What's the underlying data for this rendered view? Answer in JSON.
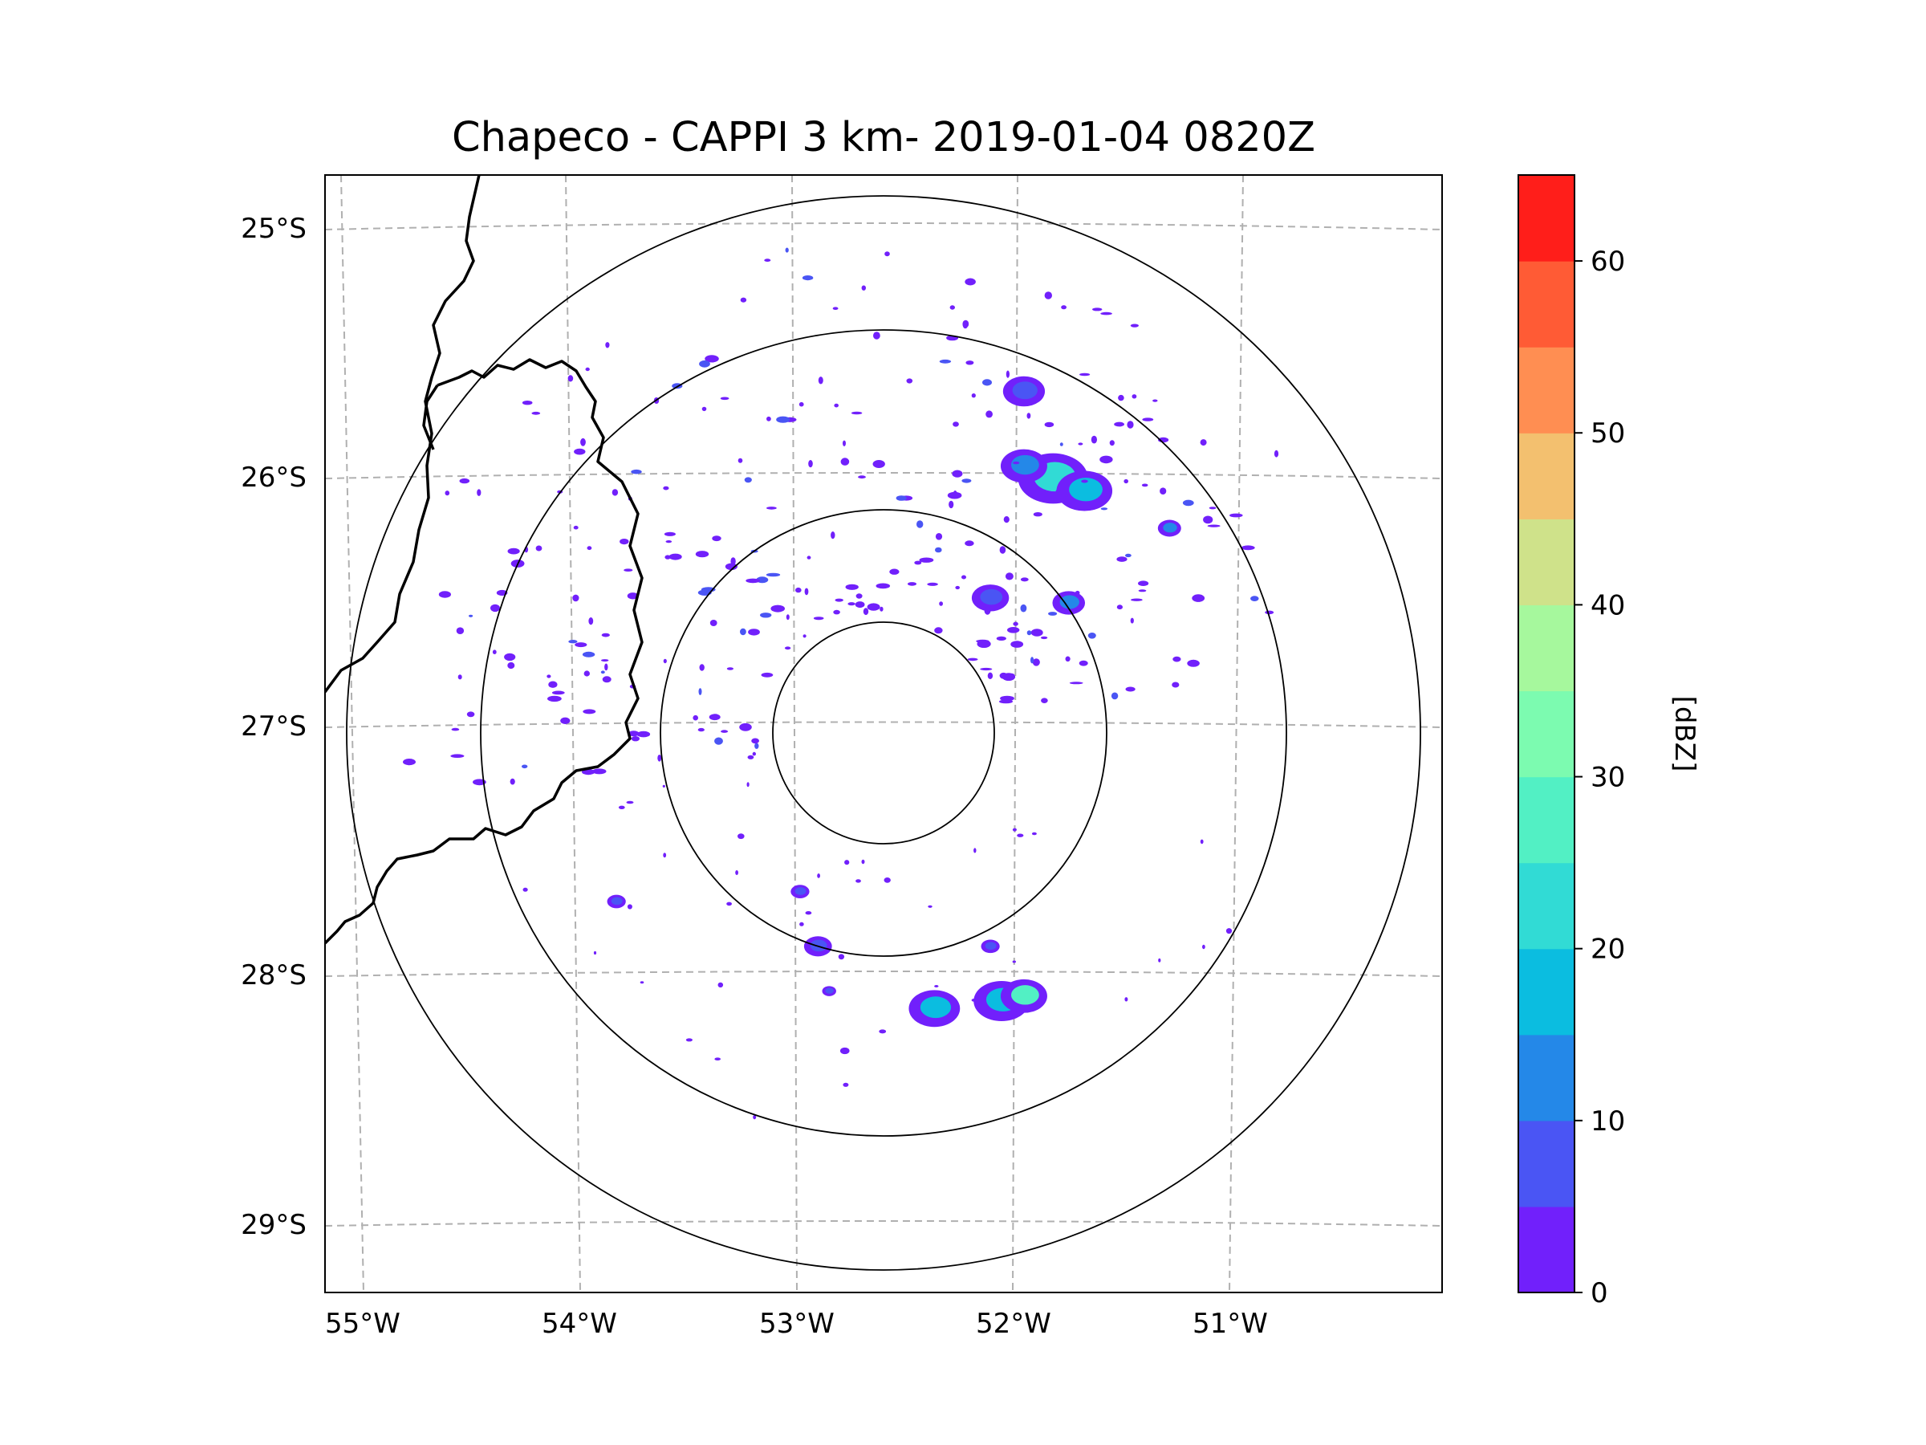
{
  "figure": {
    "title": "Chapeco - CAPPI 3 km- 2019-01-04 0820Z",
    "background": "#ffffff"
  },
  "map": {
    "lat_labels": [
      "25°S",
      "26°S",
      "27°S",
      "28°S",
      "29°S"
    ],
    "lon_labels": [
      "55°W",
      "54°W",
      "53°W",
      "52°W",
      "51°W"
    ],
    "gridline_color": "#b0b0b0",
    "border_color": "#000000",
    "range_ring_color": "#000000",
    "range_rings_count": 4
  },
  "colorbar": {
    "label": "[dBZ]",
    "ticks": [
      "0",
      "10",
      "20",
      "30",
      "40",
      "50",
      "60"
    ],
    "levels": [
      {
        "from": 0,
        "to": 5,
        "color": "#7120fb"
      },
      {
        "from": 5,
        "to": 10,
        "color": "#4a55f4"
      },
      {
        "from": 10,
        "to": 15,
        "color": "#2488e8"
      },
      {
        "from": 15,
        "to": 20,
        "color": "#0bbde0"
      },
      {
        "from": 20,
        "to": 25,
        "color": "#31dbd5"
      },
      {
        "from": 25,
        "to": 30,
        "color": "#52f0c4"
      },
      {
        "from": 30,
        "to": 35,
        "color": "#7cfbb0"
      },
      {
        "from": 35,
        "to": 40,
        "color": "#a6f89d"
      },
      {
        "from": 40,
        "to": 45,
        "color": "#cfe28a"
      },
      {
        "from": 45,
        "to": 50,
        "color": "#f3c06f"
      },
      {
        "from": 50,
        "to": 55,
        "color": "#ff8e52"
      },
      {
        "from": 55,
        "to": 60,
        "color": "#ff5b35"
      },
      {
        "from": 60,
        "to": 65,
        "color": "#ff1e1a"
      }
    ]
  },
  "chart_data": {
    "type": "heatmap",
    "title": "Chapeco - CAPPI 3 km- 2019-01-04 0820Z",
    "colorbar_label": "[dBZ]",
    "colorbar_range": [
      0,
      65
    ],
    "lat_ticks": [
      -25,
      -26,
      -27,
      -28,
      -29
    ],
    "lon_ticks": [
      -55,
      -54,
      -53,
      -52,
      -51
    ],
    "radar_center_lon": -52.6,
    "radar_center_lat": -27.03,
    "echoes": [
      {
        "lon": -52.05,
        "lat": -28.1,
        "r": 0.12,
        "dbz": 18
      },
      {
        "lon": -51.95,
        "lat": -28.08,
        "r": 0.1,
        "dbz": 25
      },
      {
        "lon": -52.35,
        "lat": -28.13,
        "r": 0.11,
        "dbz": 15
      },
      {
        "lon": -52.1,
        "lat": -27.88,
        "r": 0.04,
        "dbz": 8
      },
      {
        "lon": -52.87,
        "lat": -27.88,
        "r": 0.06,
        "dbz": 8
      },
      {
        "lon": -52.95,
        "lat": -27.66,
        "r": 0.04,
        "dbz": 6
      },
      {
        "lon": -52.82,
        "lat": -28.06,
        "r": 0.03,
        "dbz": 6
      },
      {
        "lon": -53.77,
        "lat": -27.7,
        "r": 0.04,
        "dbz": 6
      },
      {
        "lon": -52.75,
        "lat": -28.3,
        "r": 0.02,
        "dbz": 4
      },
      {
        "lon": -51.82,
        "lat": -26.0,
        "r": 0.15,
        "dbz": 20
      },
      {
        "lon": -51.68,
        "lat": -26.05,
        "r": 0.12,
        "dbz": 16
      },
      {
        "lon": -51.95,
        "lat": -25.95,
        "r": 0.1,
        "dbz": 12
      },
      {
        "lon": -51.95,
        "lat": -25.65,
        "r": 0.09,
        "dbz": 8
      },
      {
        "lon": -51.75,
        "lat": -26.5,
        "r": 0.07,
        "dbz": 10
      },
      {
        "lon": -51.3,
        "lat": -26.2,
        "r": 0.05,
        "dbz": 10
      },
      {
        "lon": -52.1,
        "lat": -26.48,
        "r": 0.08,
        "dbz": 6
      }
    ]
  }
}
